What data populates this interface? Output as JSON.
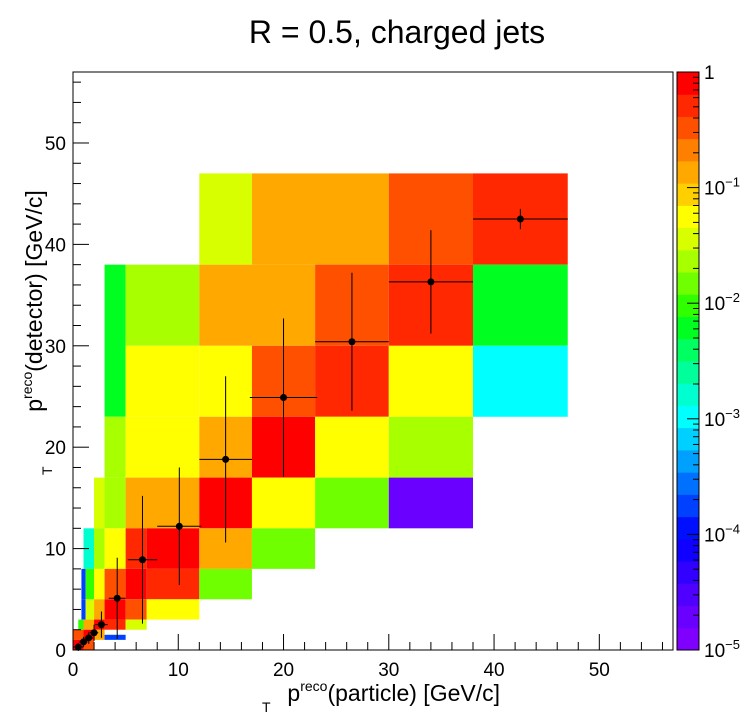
{
  "chart_data": {
    "type": "heatmap",
    "title": "R = 0.5, charged jets",
    "xlabel": {
      "base": "p",
      "sub": "T",
      "sup": "reco",
      "rest": "(particle) [GeV/c]"
    },
    "ylabel": {
      "base": "p",
      "sub": "T",
      "sup": "reco",
      "rest": "(detector) [GeV/c]"
    },
    "xlim": [
      0,
      57
    ],
    "ylim": [
      0,
      57
    ],
    "x_ticks": [
      "0",
      "10",
      "20",
      "30",
      "40",
      "50"
    ],
    "y_ticks": [
      "0",
      "10",
      "20",
      "30",
      "40",
      "50"
    ],
    "colorbar": {
      "scale": "log",
      "range": [
        1e-05,
        1
      ],
      "ticks": [
        {
          "value": 1,
          "base": "1",
          "exp": ""
        },
        {
          "value": 0.1,
          "base": "10",
          "exp": "−1"
        },
        {
          "value": 0.01,
          "base": "10",
          "exp": "−2"
        },
        {
          "value": 0.001,
          "base": "10",
          "exp": "−3"
        },
        {
          "value": 0.0001,
          "base": "10",
          "exp": "−4"
        },
        {
          "value": 1e-05,
          "base": "10",
          "exp": "−5"
        }
      ],
      "palette": [
        "#7f00ff",
        "#6a00ff",
        "#5000ff",
        "#3200ff",
        "#1000ff",
        "#0010ff",
        "#0040ff",
        "#0070ff",
        "#00a0ff",
        "#00d0ff",
        "#00ffff",
        "#00ffd0",
        "#00ff9a",
        "#00ff60",
        "#00ff20",
        "#30ff00",
        "#70ff00",
        "#a8ff00",
        "#d8ff00",
        "#ffff00",
        "#ffd000",
        "#ffa800",
        "#ff8000",
        "#ff5000",
        "#ff2800",
        "#ff0000"
      ]
    },
    "cells": [
      {
        "x0": 12,
        "x1": 17,
        "y0": 38,
        "y1": 47,
        "z": 0.04
      },
      {
        "x0": 17,
        "x1": 30,
        "y0": 38,
        "y1": 47,
        "z": 0.13
      },
      {
        "x0": 30,
        "x1": 38,
        "y0": 38,
        "y1": 47,
        "z": 0.3
      },
      {
        "x0": 38,
        "x1": 47,
        "y0": 38,
        "y1": 47,
        "z": 0.6
      },
      {
        "x0": 3,
        "x1": 5,
        "y0": 23,
        "y1": 38,
        "z": 0.006
      },
      {
        "x0": 5,
        "x1": 12,
        "y0": 30,
        "y1": 38,
        "z": 0.025
      },
      {
        "x0": 12,
        "x1": 23,
        "y0": 30,
        "y1": 38,
        "z": 0.13
      },
      {
        "x0": 23,
        "x1": 30,
        "y0": 30,
        "y1": 38,
        "z": 0.3
      },
      {
        "x0": 30,
        "x1": 38,
        "y0": 30,
        "y1": 38,
        "z": 0.6
      },
      {
        "x0": 38,
        "x1": 47,
        "y0": 30,
        "y1": 38,
        "z": 0.006
      },
      {
        "x0": 5,
        "x1": 12,
        "y0": 23,
        "y1": 30,
        "z": 0.05
      },
      {
        "x0": 12,
        "x1": 17,
        "y0": 23,
        "y1": 30,
        "z": 0.07
      },
      {
        "x0": 17,
        "x1": 23,
        "y0": 23,
        "y1": 30,
        "z": 0.3
      },
      {
        "x0": 23,
        "x1": 30,
        "y0": 23,
        "y1": 30,
        "z": 0.6
      },
      {
        "x0": 30,
        "x1": 38,
        "y0": 23,
        "y1": 30,
        "z": 0.05
      },
      {
        "x0": 38,
        "x1": 47,
        "y0": 23,
        "y1": 30,
        "z": 0.0012
      },
      {
        "x0": 3,
        "x1": 5,
        "y0": 17,
        "y1": 23,
        "z": 0.025
      },
      {
        "x0": 5,
        "x1": 12,
        "y0": 17,
        "y1": 23,
        "z": 0.07
      },
      {
        "x0": 12,
        "x1": 17,
        "y0": 17,
        "y1": 23,
        "z": 0.15
      },
      {
        "x0": 17,
        "x1": 23,
        "y0": 17,
        "y1": 23,
        "z": 0.9
      },
      {
        "x0": 23,
        "x1": 30,
        "y0": 17,
        "y1": 23,
        "z": 0.07
      },
      {
        "x0": 30,
        "x1": 38,
        "y0": 17,
        "y1": 23,
        "z": 0.025
      },
      {
        "x0": 2,
        "x1": 3,
        "y0": 12,
        "y1": 17,
        "z": 0.03
      },
      {
        "x0": 3,
        "x1": 5,
        "y0": 12,
        "y1": 17,
        "z": 0.025
      },
      {
        "x0": 5,
        "x1": 12,
        "y0": 12,
        "y1": 17,
        "z": 0.15
      },
      {
        "x0": 12,
        "x1": 17,
        "y0": 12,
        "y1": 17,
        "z": 0.9
      },
      {
        "x0": 17,
        "x1": 23,
        "y0": 12,
        "y1": 17,
        "z": 0.07
      },
      {
        "x0": 23,
        "x1": 30,
        "y0": 12,
        "y1": 17,
        "z": 0.012
      },
      {
        "x0": 30,
        "x1": 38,
        "y0": 12,
        "y1": 17,
        "z": 2e-05
      },
      {
        "x0": 1,
        "x1": 2,
        "y0": 8,
        "y1": 12,
        "z": 0.002
      },
      {
        "x0": 2,
        "x1": 3,
        "y0": 8,
        "y1": 12,
        "z": 0.025
      },
      {
        "x0": 3,
        "x1": 5,
        "y0": 8,
        "y1": 12,
        "z": 0.07
      },
      {
        "x0": 5,
        "x1": 7,
        "y0": 8,
        "y1": 12,
        "z": 0.6
      },
      {
        "x0": 7,
        "x1": 12,
        "y0": 8,
        "y1": 12,
        "z": 0.9
      },
      {
        "x0": 12,
        "x1": 17,
        "y0": 8,
        "y1": 12,
        "z": 0.15
      },
      {
        "x0": 17,
        "x1": 23,
        "y0": 8,
        "y1": 12,
        "z": 0.012
      },
      {
        "x0": 0.8,
        "x1": 1.2,
        "y0": 5,
        "y1": 8,
        "z": 0.0002
      },
      {
        "x0": 1.2,
        "x1": 2,
        "y0": 5,
        "y1": 8,
        "z": 0.01
      },
      {
        "x0": 2,
        "x1": 3,
        "y0": 5,
        "y1": 8,
        "z": 0.05
      },
      {
        "x0": 3,
        "x1": 5,
        "y0": 5,
        "y1": 8,
        "z": 0.3
      },
      {
        "x0": 5,
        "x1": 7,
        "y0": 5,
        "y1": 8,
        "z": 0.9
      },
      {
        "x0": 7,
        "x1": 12,
        "y0": 5,
        "y1": 8,
        "z": 0.5
      },
      {
        "x0": 12,
        "x1": 17,
        "y0": 5,
        "y1": 8,
        "z": 0.012
      },
      {
        "x0": 0.8,
        "x1": 1.2,
        "y0": 3,
        "y1": 5,
        "z": 0.0002
      },
      {
        "x0": 1.2,
        "x1": 2,
        "y0": 3,
        "y1": 5,
        "z": 0.03
      },
      {
        "x0": 2,
        "x1": 3,
        "y0": 3,
        "y1": 5,
        "z": 0.15
      },
      {
        "x0": 3,
        "x1": 5,
        "y0": 3,
        "y1": 5,
        "z": 0.9
      },
      {
        "x0": 5,
        "x1": 7,
        "y0": 3,
        "y1": 5,
        "z": 0.3
      },
      {
        "x0": 7,
        "x1": 12,
        "y0": 3,
        "y1": 5,
        "z": 0.05
      },
      {
        "x0": 0.5,
        "x1": 1,
        "y0": 2,
        "y1": 3,
        "z": 0.01
      },
      {
        "x0": 1,
        "x1": 2,
        "y0": 2,
        "y1": 3,
        "z": 0.15
      },
      {
        "x0": 2,
        "x1": 3,
        "y0": 2,
        "y1": 3,
        "z": 0.9
      },
      {
        "x0": 3,
        "x1": 5,
        "y0": 2,
        "y1": 3,
        "z": 0.5
      },
      {
        "x0": 5,
        "x1": 7,
        "y0": 2,
        "y1": 3,
        "z": 0.03
      },
      {
        "x0": 0,
        "x1": 1,
        "y0": 1,
        "y1": 2,
        "z": 0.3
      },
      {
        "x0": 1,
        "x1": 2,
        "y0": 1,
        "y1": 2,
        "z": 0.9
      },
      {
        "x0": 2,
        "x1": 3,
        "y0": 1,
        "y1": 2,
        "z": 0.15
      },
      {
        "x0": 3,
        "x1": 5,
        "y0": 1,
        "y1": 1.5,
        "z": 0.0002
      },
      {
        "x0": 0,
        "x1": 1,
        "y0": 0,
        "y1": 1,
        "z": 0.9
      },
      {
        "x0": 1,
        "x1": 2,
        "y0": 0,
        "y1": 1,
        "z": 0.3
      }
    ],
    "points": [
      {
        "x": 0.5,
        "y": 0.3,
        "xerr": 0.5,
        "yerr": 0.4
      },
      {
        "x": 1.0,
        "y": 0.8,
        "xerr": 0.4,
        "yerr": 0.5
      },
      {
        "x": 1.5,
        "y": 1.2,
        "xerr": 0.4,
        "yerr": 0.6
      },
      {
        "x": 2.0,
        "y": 1.7,
        "xerr": 0.4,
        "yerr": 0.8
      },
      {
        "x": 2.7,
        "y": 2.5,
        "xerr": 0.6,
        "yerr": 1.3
      },
      {
        "x": 4.2,
        "y": 5.1,
        "xerr": 0.8,
        "yerr": 4.0
      },
      {
        "x": 6.6,
        "y": 8.9,
        "xerr": 1.4,
        "yerr": 6.3
      },
      {
        "x": 10.1,
        "y": 12.2,
        "xerr": 2.1,
        "yerr": 5.8
      },
      {
        "x": 14.5,
        "y": 18.8,
        "xerr": 2.5,
        "yerr": 8.2
      },
      {
        "x": 20.0,
        "y": 24.9,
        "xerr": 3.2,
        "yerr": 7.8
      },
      {
        "x": 26.5,
        "y": 30.4,
        "xerr": 3.5,
        "yerr": 6.8
      },
      {
        "x": 34.0,
        "y": 36.3,
        "xerr": 4.0,
        "yerr": 5.1
      },
      {
        "x": 42.5,
        "y": 42.5,
        "xerr": 4.5,
        "yerr": 1.0
      }
    ]
  }
}
